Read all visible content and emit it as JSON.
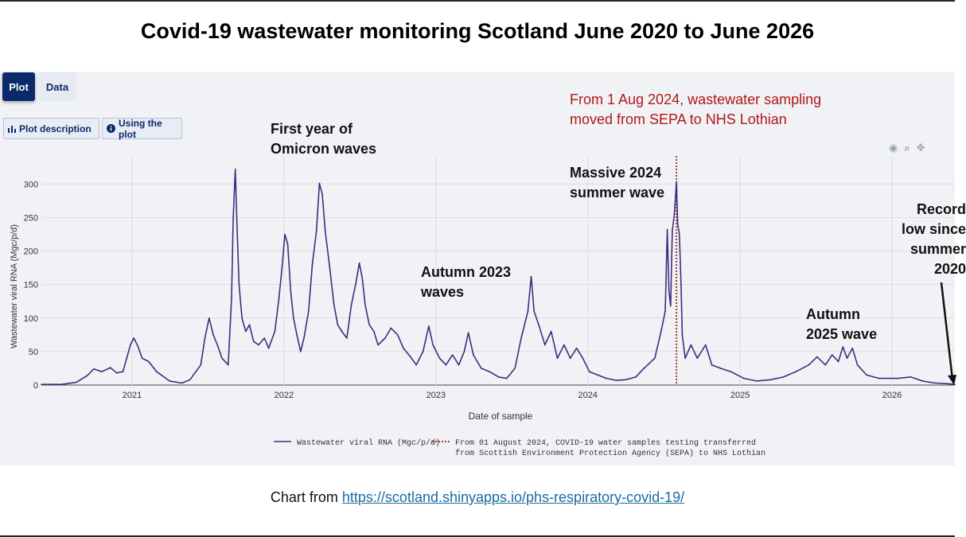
{
  "title": "Covid-19 wastewater monitoring Scotland June 2020 to June 2026",
  "tabs": {
    "plot": "Plot",
    "data": "Data"
  },
  "buttons": {
    "plot_description": "Plot description",
    "using_the_plot": "Using the plot"
  },
  "toolbar_icons": [
    "camera-icon",
    "zoom-icon",
    "pan-icon"
  ],
  "annotations": {
    "omicron": [
      "First year of",
      "Omicron waves"
    ],
    "autumn2023": [
      "Autumn 2023",
      "waves"
    ],
    "massive2024": [
      "Massive 2024",
      "summer  wave"
    ],
    "autumn2025": [
      "Autumn",
      "2025 wave"
    ],
    "record_low": [
      "Record",
      "low since",
      "summer",
      "2020"
    ],
    "sepa_change": [
      "From 1 Aug 2024, wastewater sampling",
      "moved from SEPA to NHS Lothian"
    ]
  },
  "footer": {
    "prefix": "Chart from ",
    "link": "https://scotland.shinyapps.io/phs-respiratory-covid-19/"
  },
  "colors": {
    "series": "#3b2f7e",
    "vline": "#b03a2e",
    "red_text": "#b01818",
    "panel": "#f1f2f6"
  },
  "chart_data": {
    "type": "line",
    "title": "",
    "xlabel": "Date of sample",
    "ylabel": "Wastewater viral RNA (Mgc/p/d)",
    "ylim": [
      0,
      330
    ],
    "xlim": [
      "2020-05-28",
      "2026-06-01"
    ],
    "yticks": [
      0,
      50,
      100,
      150,
      200,
      250,
      300
    ],
    "xticks": [
      "2021",
      "2022",
      "2023",
      "2024",
      "2025",
      "2026"
    ],
    "legend": {
      "placement": "bottom",
      "series_label": "Wastewater viral RNA (Mgc/p/d)",
      "vline_label": [
        "From 01 August 2024, COVID-19 water samples testing transferred",
        "from Scottish Environment Protection Agency (SEPA) to NHS Lothian"
      ]
    },
    "vline": {
      "x": "2024-08-01"
    },
    "series": [
      {
        "name": "Wastewater viral RNA (Mgc/p/d)",
        "points": [
          [
            "2020-05-28",
            1
          ],
          [
            "2020-07-15",
            1
          ],
          [
            "2020-08-20",
            4
          ],
          [
            "2020-09-15",
            14
          ],
          [
            "2020-10-01",
            24
          ],
          [
            "2020-10-20",
            20
          ],
          [
            "2020-11-10",
            26
          ],
          [
            "2020-11-25",
            18
          ],
          [
            "2020-12-10",
            20
          ],
          [
            "2020-12-28",
            60
          ],
          [
            "2021-01-05",
            70
          ],
          [
            "2021-01-15",
            58
          ],
          [
            "2021-01-25",
            40
          ],
          [
            "2021-02-10",
            35
          ],
          [
            "2021-03-01",
            20
          ],
          [
            "2021-04-01",
            6
          ],
          [
            "2021-05-01",
            3
          ],
          [
            "2021-05-20",
            8
          ],
          [
            "2021-06-15",
            30
          ],
          [
            "2021-06-25",
            70
          ],
          [
            "2021-07-05",
            100
          ],
          [
            "2021-07-15",
            75
          ],
          [
            "2021-07-25",
            60
          ],
          [
            "2021-08-05",
            40
          ],
          [
            "2021-08-20",
            30
          ],
          [
            "2021-08-28",
            130
          ],
          [
            "2021-09-01",
            250
          ],
          [
            "2021-09-06",
            322
          ],
          [
            "2021-09-10",
            240
          ],
          [
            "2021-09-15",
            150
          ],
          [
            "2021-09-22",
            100
          ],
          [
            "2021-10-01",
            80
          ],
          [
            "2021-10-10",
            90
          ],
          [
            "2021-10-20",
            65
          ],
          [
            "2021-11-01",
            60
          ],
          [
            "2021-11-15",
            70
          ],
          [
            "2021-11-25",
            55
          ],
          [
            "2021-12-10",
            80
          ],
          [
            "2021-12-20",
            130
          ],
          [
            "2021-12-28",
            180
          ],
          [
            "2022-01-03",
            225
          ],
          [
            "2022-01-10",
            210
          ],
          [
            "2022-01-17",
            140
          ],
          [
            "2022-01-24",
            100
          ],
          [
            "2022-02-01",
            75
          ],
          [
            "2022-02-10",
            50
          ],
          [
            "2022-02-18",
            70
          ],
          [
            "2022-03-01",
            110
          ],
          [
            "2022-03-10",
            180
          ],
          [
            "2022-03-20",
            230
          ],
          [
            "2022-03-27",
            301
          ],
          [
            "2022-04-03",
            285
          ],
          [
            "2022-04-10",
            230
          ],
          [
            "2022-04-20",
            180
          ],
          [
            "2022-05-01",
            120
          ],
          [
            "2022-05-10",
            90
          ],
          [
            "2022-05-20",
            80
          ],
          [
            "2022-06-01",
            70
          ],
          [
            "2022-06-12",
            120
          ],
          [
            "2022-06-22",
            150
          ],
          [
            "2022-07-01",
            182
          ],
          [
            "2022-07-08",
            160
          ],
          [
            "2022-07-15",
            120
          ],
          [
            "2022-07-25",
            90
          ],
          [
            "2022-08-05",
            80
          ],
          [
            "2022-08-15",
            60
          ],
          [
            "2022-09-01",
            70
          ],
          [
            "2022-09-15",
            85
          ],
          [
            "2022-10-01",
            75
          ],
          [
            "2022-10-15",
            55
          ],
          [
            "2022-11-01",
            42
          ],
          [
            "2022-11-15",
            30
          ],
          [
            "2022-12-01",
            50
          ],
          [
            "2022-12-15",
            88
          ],
          [
            "2022-12-25",
            60
          ],
          [
            "2023-01-10",
            40
          ],
          [
            "2023-01-25",
            30
          ],
          [
            "2023-02-10",
            45
          ],
          [
            "2023-02-25",
            30
          ],
          [
            "2023-03-10",
            50
          ],
          [
            "2023-03-20",
            78
          ],
          [
            "2023-04-01",
            45
          ],
          [
            "2023-04-20",
            25
          ],
          [
            "2023-05-10",
            20
          ],
          [
            "2023-06-01",
            12
          ],
          [
            "2023-06-20",
            10
          ],
          [
            "2023-07-10",
            25
          ],
          [
            "2023-07-25",
            70
          ],
          [
            "2023-08-10",
            110
          ],
          [
            "2023-08-18",
            162
          ],
          [
            "2023-08-25",
            110
          ],
          [
            "2023-09-05",
            90
          ],
          [
            "2023-09-20",
            60
          ],
          [
            "2023-10-05",
            80
          ],
          [
            "2023-10-20",
            40
          ],
          [
            "2023-11-05",
            60
          ],
          [
            "2023-11-20",
            40
          ],
          [
            "2023-12-05",
            55
          ],
          [
            "2023-12-20",
            40
          ],
          [
            "2024-01-05",
            20
          ],
          [
            "2024-01-25",
            15
          ],
          [
            "2024-02-15",
            10
          ],
          [
            "2024-03-10",
            7
          ],
          [
            "2024-04-01",
            8
          ],
          [
            "2024-04-25",
            12
          ],
          [
            "2024-05-15",
            25
          ],
          [
            "2024-06-10",
            40
          ],
          [
            "2024-06-25",
            80
          ],
          [
            "2024-07-05",
            110
          ],
          [
            "2024-07-10",
            232
          ],
          [
            "2024-07-14",
            140
          ],
          [
            "2024-07-18",
            118
          ],
          [
            "2024-07-22",
            230
          ],
          [
            "2024-07-27",
            255
          ],
          [
            "2024-08-01",
            303
          ],
          [
            "2024-08-04",
            240
          ],
          [
            "2024-08-08",
            225
          ],
          [
            "2024-08-12",
            150
          ],
          [
            "2024-08-15",
            75
          ],
          [
            "2024-08-22",
            40
          ],
          [
            "2024-09-05",
            60
          ],
          [
            "2024-09-20",
            40
          ],
          [
            "2024-10-10",
            60
          ],
          [
            "2024-10-25",
            30
          ],
          [
            "2024-11-15",
            25
          ],
          [
            "2024-12-10",
            20
          ],
          [
            "2025-01-10",
            10
          ],
          [
            "2025-02-10",
            6
          ],
          [
            "2025-03-15",
            8
          ],
          [
            "2025-04-15",
            12
          ],
          [
            "2025-05-15",
            20
          ],
          [
            "2025-06-15",
            30
          ],
          [
            "2025-07-05",
            42
          ],
          [
            "2025-07-25",
            30
          ],
          [
            "2025-08-10",
            45
          ],
          [
            "2025-08-25",
            35
          ],
          [
            "2025-09-05",
            57
          ],
          [
            "2025-09-15",
            40
          ],
          [
            "2025-09-28",
            55
          ],
          [
            "2025-10-10",
            30
          ],
          [
            "2025-11-01",
            15
          ],
          [
            "2025-12-01",
            10
          ],
          [
            "2026-01-15",
            10
          ],
          [
            "2026-02-15",
            12
          ],
          [
            "2026-03-15",
            6
          ],
          [
            "2026-04-15",
            3
          ],
          [
            "2026-05-15",
            2
          ],
          [
            "2026-06-01",
            1
          ]
        ]
      }
    ]
  }
}
